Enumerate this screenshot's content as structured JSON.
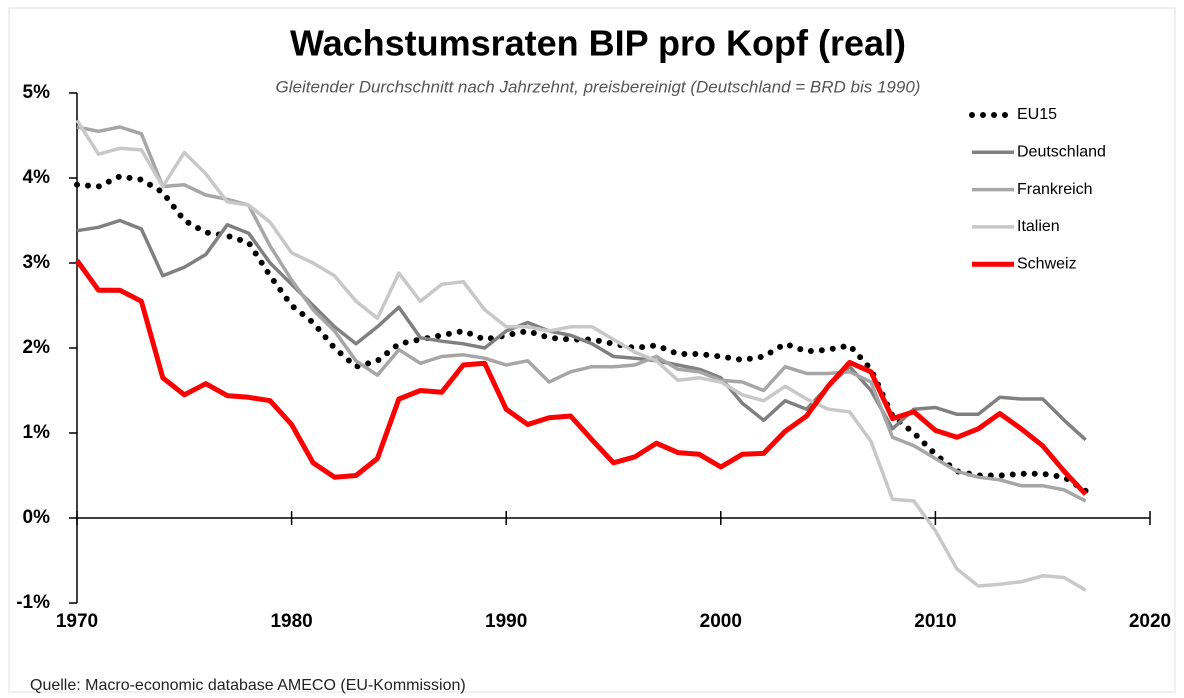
{
  "chart_data": {
    "type": "line",
    "title": "Wachstumsraten BIP pro Kopf (real)",
    "subtitle": "Gleitender Durchschnitt nach Jahrzehnt, preisbereinigt (Deutschland = BRD bis 1990)",
    "source": "Quelle:  Macro-economic database AMECO (EU-Kommission)",
    "x": [
      1970,
      1971,
      1972,
      1973,
      1974,
      1975,
      1976,
      1977,
      1978,
      1979,
      1980,
      1981,
      1982,
      1983,
      1984,
      1985,
      1986,
      1987,
      1988,
      1989,
      1990,
      1991,
      1992,
      1993,
      1994,
      1995,
      1996,
      1997,
      1998,
      1999,
      2000,
      2001,
      2002,
      2003,
      2004,
      2005,
      2006,
      2007,
      2008,
      2009,
      2010,
      2011,
      2012,
      2013,
      2014,
      2015,
      2016,
      2017
    ],
    "xlim": [
      1970,
      2020
    ],
    "xticks": [
      1970,
      1980,
      1990,
      2000,
      2010,
      2020
    ],
    "ylim": [
      -1,
      5
    ],
    "yticks": [
      {
        "value": -1,
        "label": "-1%"
      },
      {
        "value": 0,
        "label": "0%"
      },
      {
        "value": 1,
        "label": "1%"
      },
      {
        "value": 2,
        "label": "2%"
      },
      {
        "value": 3,
        "label": "3%"
      },
      {
        "value": 4,
        "label": "4%"
      },
      {
        "value": 5,
        "label": "5%"
      }
    ],
    "legend": "top-right",
    "series": [
      {
        "name": "EU15",
        "color": "#000000",
        "style": "dotted",
        "values": [
          3.92,
          3.9,
          4.02,
          3.98,
          3.83,
          3.5,
          3.36,
          3.32,
          3.24,
          2.85,
          2.5,
          2.3,
          2.0,
          1.78,
          1.85,
          2.05,
          2.1,
          2.15,
          2.2,
          2.1,
          2.15,
          2.2,
          2.12,
          2.1,
          2.1,
          2.05,
          2.0,
          2.03,
          1.93,
          1.93,
          1.9,
          1.86,
          1.9,
          2.05,
          1.96,
          1.98,
          2.03,
          1.75,
          1.2,
          1.0,
          0.75,
          0.55,
          0.5,
          0.5,
          0.52,
          0.52,
          0.48,
          0.32
        ]
      },
      {
        "name": "Deutschland",
        "color": "#808080",
        "style": "solid",
        "values": [
          3.38,
          3.42,
          3.5,
          3.4,
          2.85,
          2.95,
          3.1,
          3.45,
          3.35,
          3.0,
          2.75,
          2.5,
          2.25,
          2.05,
          2.25,
          2.48,
          2.12,
          2.08,
          2.05,
          2.0,
          2.2,
          2.3,
          2.2,
          2.15,
          2.05,
          1.9,
          1.88,
          1.85,
          1.8,
          1.75,
          1.65,
          1.35,
          1.15,
          1.38,
          1.28,
          1.55,
          1.78,
          1.5,
          1.05,
          1.28,
          1.3,
          1.22,
          1.22,
          1.42,
          1.4,
          1.4,
          1.15,
          0.92
        ]
      },
      {
        "name": "Frankreich",
        "color": "#a6a6a6",
        "style": "solid",
        "values": [
          4.6,
          4.55,
          4.6,
          4.52,
          3.9,
          3.92,
          3.8,
          3.75,
          3.68,
          3.2,
          2.8,
          2.45,
          2.2,
          1.85,
          1.68,
          1.98,
          1.82,
          1.9,
          1.92,
          1.88,
          1.8,
          1.85,
          1.6,
          1.72,
          1.78,
          1.78,
          1.8,
          1.9,
          1.75,
          1.72,
          1.62,
          1.6,
          1.5,
          1.78,
          1.7,
          1.7,
          1.72,
          1.6,
          0.95,
          0.85,
          0.7,
          0.55,
          0.48,
          0.45,
          0.38,
          0.38,
          0.33,
          0.2
        ]
      },
      {
        "name": "Italien",
        "color": "#c8c8c8",
        "style": "solid",
        "values": [
          4.68,
          4.28,
          4.35,
          4.33,
          3.9,
          4.3,
          4.05,
          3.72,
          3.68,
          3.48,
          3.12,
          3.0,
          2.85,
          2.55,
          2.35,
          2.88,
          2.55,
          2.75,
          2.78,
          2.45,
          2.25,
          2.25,
          2.2,
          2.25,
          2.25,
          2.1,
          1.95,
          1.85,
          1.62,
          1.65,
          1.6,
          1.45,
          1.38,
          1.55,
          1.4,
          1.28,
          1.25,
          0.9,
          0.22,
          0.2,
          -0.15,
          -0.6,
          -0.8,
          -0.78,
          -0.75,
          -0.68,
          -0.7,
          -0.85
        ]
      },
      {
        "name": "Schweiz",
        "color": "#ff0000",
        "style": "thick",
        "values": [
          3.03,
          2.68,
          2.68,
          2.55,
          1.65,
          1.45,
          1.58,
          1.44,
          1.42,
          1.38,
          1.1,
          0.65,
          0.48,
          0.5,
          0.7,
          1.4,
          1.5,
          1.48,
          1.8,
          1.82,
          1.28,
          1.1,
          1.18,
          1.2,
          0.92,
          0.65,
          0.72,
          0.88,
          0.77,
          0.75,
          0.6,
          0.75,
          0.76,
          1.02,
          1.2,
          1.55,
          1.83,
          1.72,
          1.17,
          1.25,
          1.03,
          0.95,
          1.05,
          1.23,
          1.05,
          0.85,
          0.55,
          0.28
        ]
      }
    ]
  }
}
